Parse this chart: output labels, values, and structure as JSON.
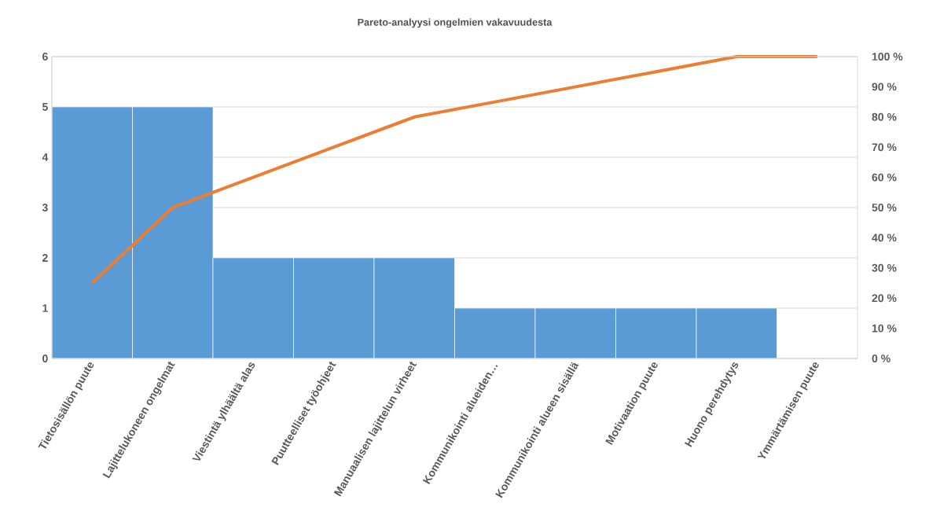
{
  "chart_data": {
    "type": "bar",
    "title": "Pareto-analyysi ongelmien vakavuudesta",
    "categories": [
      "Tietosisällön puute",
      "Lajittelukoneen ongelmat",
      "Viestintä ylhäältä alas",
      "Puutteelliset työohjeet",
      "Manuaalisen lajittelun virheet",
      "Kommunikointi alueiden…",
      "Kommunikointi alueen sisällä",
      "Motivaation puute",
      "Huono perehdytys",
      "Ymmärtämisen puute"
    ],
    "series": [
      {
        "color": "#5b9bd5",
        "values": [
          5,
          5,
          2,
          2,
          2,
          1,
          1,
          1,
          1,
          0
        ]
      },
      {
        "type": "line",
        "axis": "y2",
        "color": "#ed7d31",
        "values": [
          25,
          50,
          60,
          70,
          80,
          85,
          90,
          95,
          100,
          100
        ]
      }
    ],
    "ylim": [
      0,
      6
    ],
    "yticks": [
      0,
      1,
      2,
      3,
      4,
      5,
      6
    ],
    "y2lim": [
      0,
      100
    ],
    "y2ticks": [
      {
        "value": 0,
        "label": "0 %"
      },
      {
        "value": 10,
        "label": "10 %"
      },
      {
        "value": 20,
        "label": "20 %"
      },
      {
        "value": 30,
        "label": "30 %"
      },
      {
        "value": 40,
        "label": "40 %"
      },
      {
        "value": 50,
        "label": "50 %"
      },
      {
        "value": 60,
        "label": "60 %"
      },
      {
        "value": 70,
        "label": "70 %"
      },
      {
        "value": 80,
        "label": "80 %"
      },
      {
        "value": 90,
        "label": "90 %"
      },
      {
        "value": 100,
        "label": "100 %"
      }
    ],
    "grid": "y",
    "marker": "none"
  }
}
